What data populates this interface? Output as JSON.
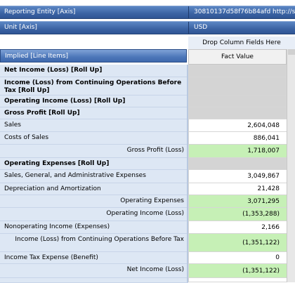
{
  "axes": {
    "reporting_entity": {
      "label": "Reporting Entity [Axis]",
      "value": "30810137d58f76b84afd http://sta"
    },
    "unit": {
      "label": "Unit [Axis]",
      "value": "USD"
    }
  },
  "drop_zone": "Drop Column Fields Here",
  "headers": {
    "row_header": "Implied [Line Items]",
    "column_header": "Fact Value"
  },
  "rows": [
    {
      "label": "Net Income (Loss) [Roll Up]",
      "value": ""
    },
    {
      "label": "Income (Loss)  from Continuing Operations Before Tax [Roll Up]",
      "value": ""
    },
    {
      "label": "Operating Income (Loss) [Roll Up]",
      "value": ""
    },
    {
      "label": "Gross Profit [Roll Up]",
      "value": ""
    },
    {
      "label": "Sales",
      "value": "2,604,048"
    },
    {
      "label": "Costs of Sales",
      "value": "886,041"
    },
    {
      "label": "Gross Profit (Loss)",
      "value": "1,718,007"
    },
    {
      "label": "Operating Expenses [Roll Up]",
      "value": ""
    },
    {
      "label": "Sales, General, and Administrative Expenses",
      "value": "3,049,867"
    },
    {
      "label": "Depreciation and Amortization",
      "value": "21,428"
    },
    {
      "label": "Operating Expenses",
      "value": "3,071,295"
    },
    {
      "label": "Operating Income (Loss)",
      "value": "(1,353,288)"
    },
    {
      "label": "Nonoperating Income (Expenses)",
      "value": "2,166"
    },
    {
      "label": "Income (Loss) from Continuing Operations Before Tax",
      "value": "(1,351,122)"
    },
    {
      "label": "Income Tax Expense (Benefit)",
      "value": "0"
    },
    {
      "label": "Net Income (Loss)",
      "value": "(1,351,122)"
    }
  ]
}
